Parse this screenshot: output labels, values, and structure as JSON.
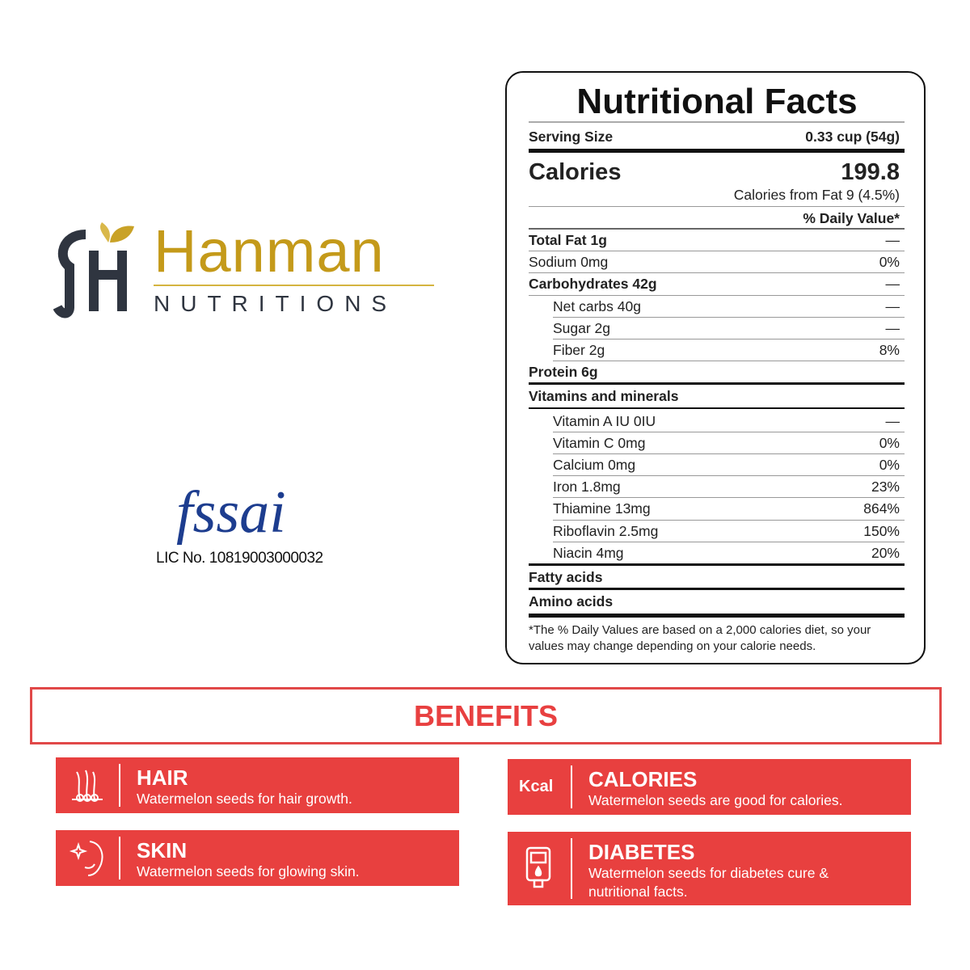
{
  "logo": {
    "brand": "Hanman",
    "tagline": "NUTRITIONS"
  },
  "fssai": {
    "mark": "fssai",
    "license": "LIC No. 10819003000032"
  },
  "nutrition": {
    "title": "Nutritional Facts",
    "serving_size": {
      "label": "Serving Size",
      "value": "0.33 cup (54g)"
    },
    "calories": {
      "label": "Calories",
      "value": "199.8",
      "from_fat": "Calories from Fat 9 (4.5%)"
    },
    "daily_value_header": "% Daily Value*",
    "rows": [
      [
        "Total Fat 1g",
        "—"
      ],
      [
        "Sodium 0mg",
        "0%"
      ],
      [
        "Carbohydrates 42g",
        "—"
      ],
      [
        "Net carbs 40g",
        "—"
      ],
      [
        "Sugar 2g",
        "—"
      ],
      [
        "Fiber 2g",
        "8%"
      ]
    ],
    "protein": "Protein 6g",
    "vitamins_header": "Vitamins and minerals",
    "vitamins": [
      [
        "Vitamin A IU 0IU",
        "—"
      ],
      [
        "Vitamin C 0mg",
        "0%"
      ],
      [
        "Calcium 0mg",
        "0%"
      ],
      [
        "Iron 1.8mg",
        "23%"
      ],
      [
        "Thiamine 13mg",
        "864%"
      ],
      [
        "Riboflavin 2.5mg",
        "150%"
      ],
      [
        "Niacin 4mg",
        "20%"
      ]
    ],
    "fatty_acids": "Fatty acids",
    "amino_acids": "Amino acids",
    "footnote": "*The % Daily Values are based on a 2,000 calories diet, so your values may change depending on your calorie needs."
  },
  "benefits": {
    "title": "BENEFITS",
    "items": [
      {
        "title": "HAIR",
        "text": "Watermelon seeds for hair growth."
      },
      {
        "title": "SKIN",
        "text": "Watermelon seeds for glowing skin."
      },
      {
        "icon_label": "Kcal",
        "title": "CALORIES",
        "text": "Watermelon seeds are good for calories."
      },
      {
        "title": "DIABETES",
        "text": "Watermelon seeds for diabetes cure & nutritional facts."
      }
    ]
  }
}
